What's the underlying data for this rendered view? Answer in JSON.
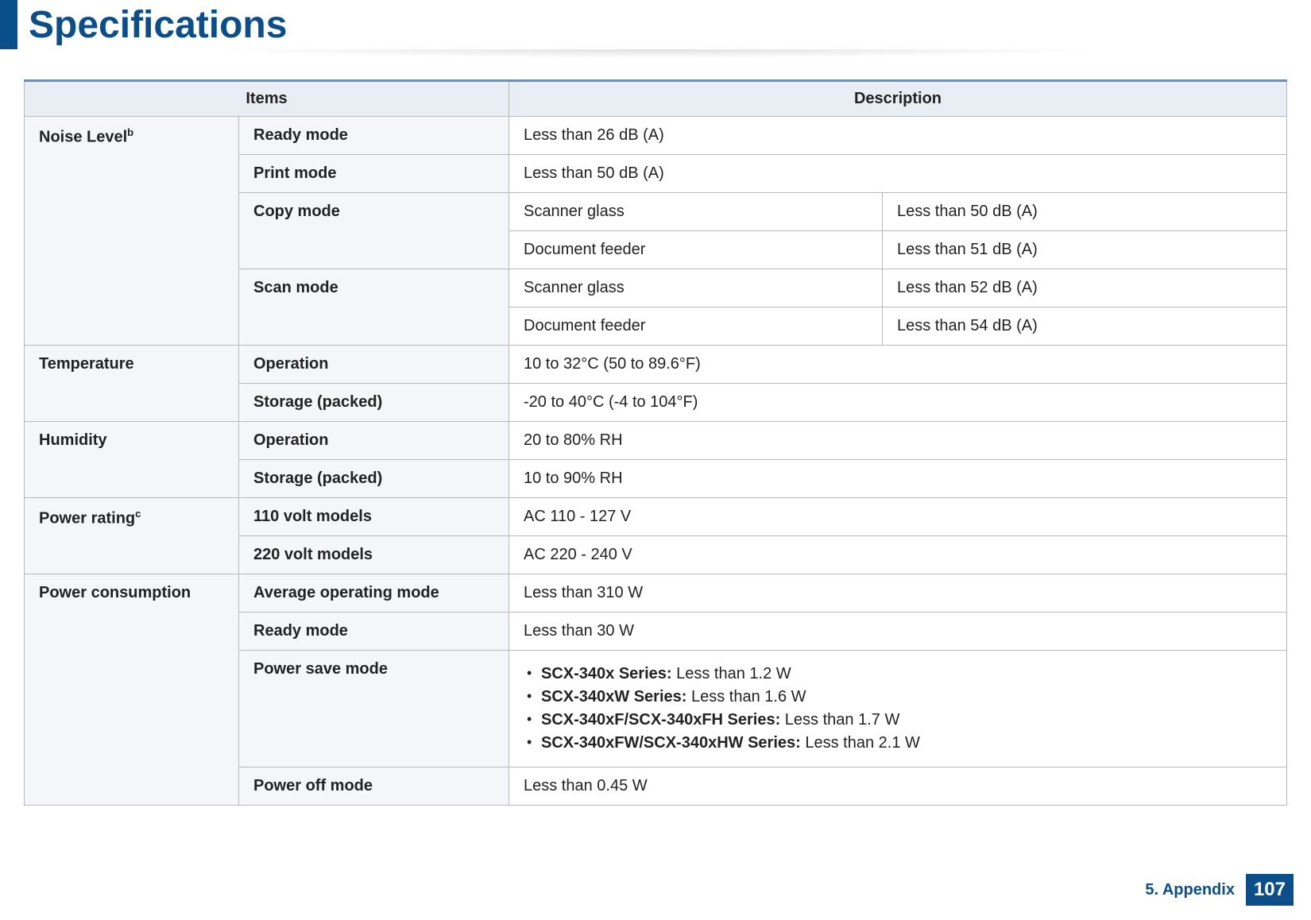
{
  "page": {
    "title": "Specifications",
    "chapter": "5.  Appendix",
    "page_number": "107"
  },
  "colors": {
    "brand": "#0b4f8a",
    "header_bg": "#e9eef5",
    "header_top_border": "#6f8fb5",
    "cell_border": "#b9b9b9",
    "subcell_bg": "#f4f6fa"
  },
  "table": {
    "headers": {
      "items": "Items",
      "description": "Description"
    },
    "noise": {
      "label": "Noise Level",
      "sup": "b",
      "ready": {
        "label": "Ready mode",
        "value": "Less than 26 dB (A)"
      },
      "print": {
        "label": "Print mode",
        "value": "Less than 50 dB (A)"
      },
      "copy": {
        "label": "Copy mode",
        "scanner_glass": {
          "label": "Scanner glass",
          "value": "Less than 50 dB (A)"
        },
        "doc_feeder": {
          "label": "Document feeder",
          "value": "Less than 51 dB (A)"
        }
      },
      "scan": {
        "label": "Scan mode",
        "scanner_glass": {
          "label": "Scanner glass",
          "value": "Less than 52 dB (A)"
        },
        "doc_feeder": {
          "label": "Document feeder",
          "value": "Less than 54 dB (A)"
        }
      }
    },
    "temperature": {
      "label": "Temperature",
      "operation": {
        "label": "Operation",
        "value": "10 to 32°C (50 to 89.6°F)"
      },
      "storage": {
        "label": "Storage (packed)",
        "value": "-20 to 40°C (-4 to 104°F)"
      }
    },
    "humidity": {
      "label": "Humidity",
      "operation": {
        "label": "Operation",
        "value": "20 to 80% RH"
      },
      "storage": {
        "label": "Storage (packed)",
        "value": "10 to 90% RH"
      }
    },
    "power_rating": {
      "label": "Power rating",
      "sup": "c",
      "v110": {
        "label": "110 volt models",
        "value": "AC 110 - 127 V"
      },
      "v220": {
        "label": "220 volt models",
        "value": "AC 220 - 240 V"
      }
    },
    "power_consumption": {
      "label": "Power consumption",
      "avg": {
        "label": "Average operating mode",
        "value": "Less than 310 W"
      },
      "ready": {
        "label": "Ready mode",
        "value": "Less than 30 W"
      },
      "save": {
        "label": "Power save mode",
        "items": [
          {
            "bold": "SCX-340x Series:",
            "rest": " Less than 1.2 W"
          },
          {
            "bold": "SCX-340xW Series:",
            "rest": " Less than 1.6 W"
          },
          {
            "bold": "SCX-340xF/SCX-340xFH Series:",
            "rest": " Less than 1.7 W"
          },
          {
            "bold": "SCX-340xFW/SCX-340xHW Series:",
            "rest": " Less than 2.1 W"
          }
        ]
      },
      "off": {
        "label": "Power off mode",
        "value": "Less than 0.45 W"
      }
    }
  }
}
